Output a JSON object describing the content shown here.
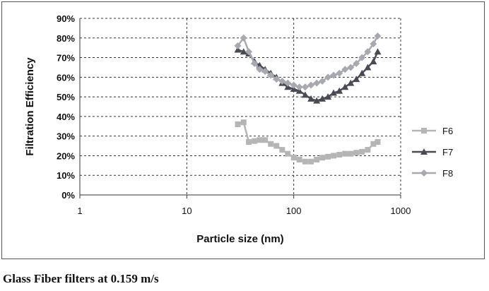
{
  "caption": "Glass Fiber filters at 0.159 m/s",
  "chart_data": {
    "type": "line",
    "title": "",
    "xlabel": "Particle size (nm)",
    "ylabel": "Filtration Efficiency",
    "xscale": "log",
    "xlim": [
      1,
      1000
    ],
    "ylim": [
      0,
      90
    ],
    "x_ticks": [
      "1",
      "10",
      "100",
      "1000"
    ],
    "y_ticks": [
      "0%",
      "10%",
      "20%",
      "30%",
      "40%",
      "50%",
      "60%",
      "70%",
      "80%",
      "90%"
    ],
    "grid": "dashed",
    "legend": "right",
    "series": [
      {
        "name": "F6",
        "color": "#b5b5b5",
        "marker": "square",
        "points": [
          [
            30,
            36
          ],
          [
            34,
            37
          ],
          [
            38,
            27
          ],
          [
            43,
            27.5
          ],
          [
            48,
            28
          ],
          [
            54,
            28
          ],
          [
            61,
            26
          ],
          [
            69,
            25
          ],
          [
            78,
            23
          ],
          [
            88,
            21
          ],
          [
            100,
            19
          ],
          [
            113,
            18
          ],
          [
            128,
            17
          ],
          [
            145,
            17
          ],
          [
            164,
            18
          ],
          [
            185,
            19
          ],
          [
            209,
            19.5
          ],
          [
            236,
            20
          ],
          [
            267,
            20.5
          ],
          [
            302,
            21
          ],
          [
            341,
            21
          ],
          [
            385,
            21.5
          ],
          [
            435,
            22
          ],
          [
            492,
            23
          ],
          [
            556,
            26
          ],
          [
            610,
            27
          ]
        ]
      },
      {
        "name": "F7",
        "color": "#4a4a55",
        "marker": "triangle",
        "points": [
          [
            30,
            74
          ],
          [
            34,
            73
          ],
          [
            38,
            72
          ],
          [
            43,
            68
          ],
          [
            48,
            66
          ],
          [
            54,
            64
          ],
          [
            61,
            62
          ],
          [
            69,
            60
          ],
          [
            78,
            57
          ],
          [
            88,
            55
          ],
          [
            100,
            54
          ],
          [
            113,
            53
          ],
          [
            128,
            51
          ],
          [
            145,
            49
          ],
          [
            164,
            48
          ],
          [
            185,
            49
          ],
          [
            209,
            50
          ],
          [
            236,
            52
          ],
          [
            267,
            53
          ],
          [
            302,
            55
          ],
          [
            341,
            57
          ],
          [
            385,
            59
          ],
          [
            435,
            62
          ],
          [
            492,
            65
          ],
          [
            556,
            68
          ],
          [
            610,
            73
          ]
        ]
      },
      {
        "name": "F8",
        "color": "#a8a8b0",
        "marker": "diamond",
        "points": [
          [
            30,
            76
          ],
          [
            34,
            80
          ],
          [
            38,
            73
          ],
          [
            43,
            67
          ],
          [
            48,
            64
          ],
          [
            54,
            63
          ],
          [
            61,
            61
          ],
          [
            69,
            59
          ],
          [
            78,
            58
          ],
          [
            88,
            57
          ],
          [
            100,
            56
          ],
          [
            113,
            55
          ],
          [
            128,
            55
          ],
          [
            145,
            56
          ],
          [
            164,
            57
          ],
          [
            185,
            58
          ],
          [
            209,
            60
          ],
          [
            236,
            61
          ],
          [
            267,
            62
          ],
          [
            302,
            64
          ],
          [
            341,
            65
          ],
          [
            385,
            67
          ],
          [
            435,
            70
          ],
          [
            492,
            73
          ],
          [
            556,
            77
          ],
          [
            610,
            81
          ]
        ]
      }
    ]
  }
}
